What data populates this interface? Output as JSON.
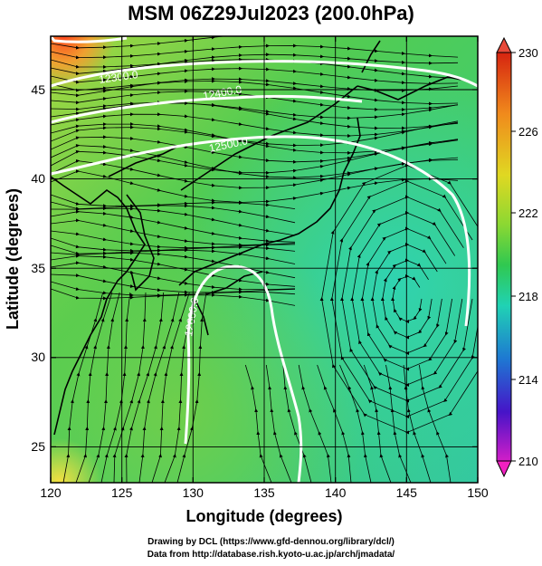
{
  "title": "MSM 06Z29Jul2023 (200.0hPa)",
  "x_axis": {
    "label": "Longitude (degrees)",
    "ticks": [
      "120",
      "125",
      "130",
      "135",
      "140",
      "145",
      "150"
    ]
  },
  "y_axis": {
    "label": "Latitude  (degrees)",
    "ticks": [
      "25",
      "30",
      "35",
      "40",
      "45"
    ]
  },
  "colorbar": {
    "ticks": [
      "230",
      "226",
      "222",
      "218",
      "214",
      "210"
    ],
    "colors": [
      "#d62410",
      "#f08a1c",
      "#d2e61e",
      "#3cc83c",
      "#20d2b4",
      "#1e64d2",
      "#4614c8",
      "#d21ec8"
    ]
  },
  "contour_labels": [
    "12300.0",
    "12400.0",
    "12500.0",
    "12600.0"
  ],
  "credits": {
    "line1": "Drawing by DCL (https://www.gfd-dennou.org/library/dcl/)",
    "line2": "Data from http://database.rish.kyoto-u.ac.jp/arch/jmadata/"
  },
  "map_extent": {
    "lon": [
      120,
      150
    ],
    "lat": [
      22.5,
      47.5
    ]
  }
}
